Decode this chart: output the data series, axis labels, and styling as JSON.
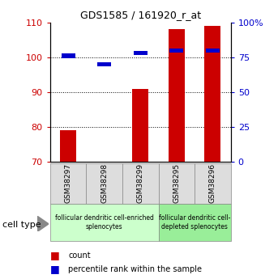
{
  "title": "GDS1585 / 161920_r_at",
  "samples": [
    "GSM38297",
    "GSM38298",
    "GSM38299",
    "GSM38295",
    "GSM38296"
  ],
  "count_values": [
    79,
    70,
    91,
    108,
    109
  ],
  "percentile_values": [
    76,
    70,
    78,
    80,
    80
  ],
  "ylim_left": [
    70,
    110
  ],
  "ylim_right": [
    0,
    100
  ],
  "yticks_left": [
    70,
    80,
    90,
    100,
    110
  ],
  "yticks_right": [
    0,
    25,
    50,
    75,
    100
  ],
  "ytick_labels_right": [
    "0",
    "25",
    "50",
    "75",
    "100%"
  ],
  "bar_color": "#cc0000",
  "percentile_color": "#0000cc",
  "bar_width": 0.45,
  "groups": [
    {
      "label": "follicular dendritic cell-enriched\nsplenocytes",
      "samples": [
        "GSM38297",
        "GSM38298",
        "GSM38299"
      ],
      "color": "#ccffcc"
    },
    {
      "label": "follicular dendritic cell-\ndepleted splenocytes",
      "samples": [
        "GSM38295",
        "GSM38296"
      ],
      "color": "#99ee99"
    }
  ],
  "cell_type_label": "cell type",
  "legend_count": "count",
  "legend_percentile": "percentile rank within the sample",
  "grid_color": "#000000",
  "sample_box_color": "#dddddd",
  "left_tick_color": "#cc0000",
  "right_tick_color": "#0000cc"
}
